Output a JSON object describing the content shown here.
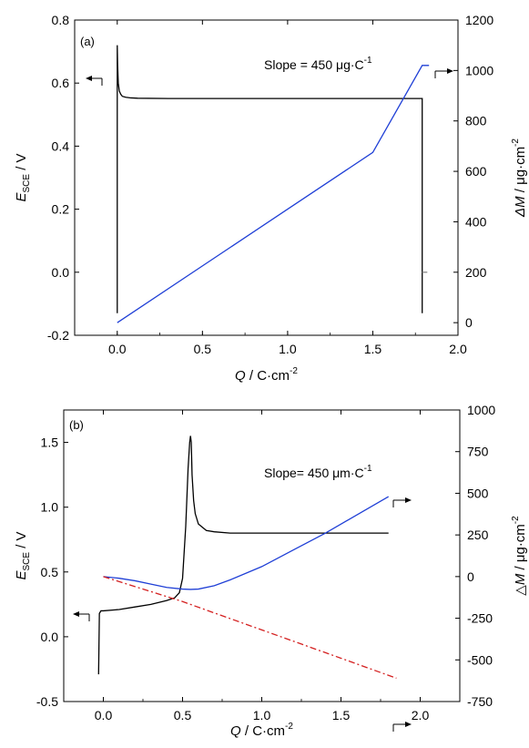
{
  "chart_data": [
    {
      "panel_label": "(a)",
      "type": "line",
      "xlabel": {
        "var": "Q",
        "unit": " / C·cm",
        "exp": "-2"
      },
      "ylabel_left": {
        "var": "E",
        "sub": "SCE",
        "unit": " / V"
      },
      "ylabel_right": {
        "var": "ΔM",
        "unit": " / μg·cm",
        "exp": "-2"
      },
      "xlim": [
        -0.25,
        2.0
      ],
      "ylim_left": [
        -0.2,
        0.8
      ],
      "ylim_right": [
        -50,
        1200
      ],
      "x_ticks": [
        "0.0",
        "0.5",
        "1.0",
        "1.5",
        "2.0"
      ],
      "y_left_ticks": [
        "-0.2",
        "0.0",
        "0.2",
        "0.4",
        "0.6",
        "0.8"
      ],
      "y_right_ticks": [
        "0",
        "200",
        "400",
        "600",
        "800",
        "1000",
        "1200"
      ],
      "annotation": {
        "text": "Slope = 450 μg·C",
        "exp": "-1"
      },
      "colors": {
        "potential": "#000000",
        "mass": "#1f3fd6",
        "stub": "#888888"
      },
      "series": [
        {
          "axis": "left",
          "color": "#000000",
          "x": [
            0.0,
            0.0,
            0.002,
            0.006,
            0.012,
            0.02,
            0.03,
            0.05,
            0.08,
            0.12,
            0.3,
            0.6,
            1.0,
            1.4,
            1.79,
            1.79
          ],
          "y": [
            -0.13,
            0.72,
            0.66,
            0.6,
            0.575,
            0.565,
            0.558,
            0.555,
            0.553,
            0.552,
            0.551,
            0.551,
            0.551,
            0.551,
            0.551,
            -0.13
          ]
        },
        {
          "axis": "right",
          "color": "#1f3fd6",
          "x": [
            0.0,
            0.5,
            1.0,
            1.5,
            1.79,
            1.83
          ],
          "y": [
            0,
            225,
            450,
            675,
            1020,
            1020
          ]
        },
        {
          "axis": "left",
          "color": "#888888",
          "x": [
            1.79,
            1.82
          ],
          "y": [
            0.0,
            0.0
          ]
        }
      ]
    },
    {
      "panel_label": "(b)",
      "type": "line",
      "xlabel": {
        "var": "Q",
        "unit": " / C·cm",
        "exp": "-2"
      },
      "ylabel_left": {
        "var": "E",
        "sub": "SCE",
        "unit": " / V"
      },
      "ylabel_right": {
        "var": "△M",
        "unit": " / μg·cm",
        "exp": "-2"
      },
      "xlim": [
        -0.25,
        2.25
      ],
      "ylim_left": [
        -0.5,
        1.75
      ],
      "ylim_right": [
        -750,
        1000
      ],
      "x_ticks": [
        "0.0",
        "0.5",
        "1.0",
        "1.5",
        "2.0"
      ],
      "y_left_ticks": [
        "-0.5",
        "0.0",
        "0.5",
        "1.0",
        "1.5"
      ],
      "y_right_ticks": [
        "-750",
        "-500",
        "-250",
        "0",
        "250",
        "500",
        "750",
        "1000"
      ],
      "annotation": {
        "text": "Slope= 450 μm·C",
        "exp": "-1"
      },
      "colors": {
        "potential": "#000000",
        "mass": "#1f3fd6",
        "dashed": "#d42020"
      },
      "series": [
        {
          "axis": "left",
          "color": "#000000",
          "x": [
            -0.03,
            -0.025,
            -0.02,
            -0.015,
            0.0,
            0.1,
            0.2,
            0.3,
            0.4,
            0.45,
            0.48,
            0.5,
            0.52,
            0.535,
            0.545,
            0.55,
            0.555,
            0.56,
            0.57,
            0.58,
            0.6,
            0.65,
            0.7,
            0.8,
            1.0,
            1.3,
            1.6,
            1.8
          ],
          "y": [
            -0.29,
            0.18,
            0.19,
            0.2,
            0.2,
            0.21,
            0.23,
            0.25,
            0.28,
            0.3,
            0.34,
            0.45,
            0.85,
            1.3,
            1.5,
            1.55,
            1.5,
            1.25,
            1.05,
            0.95,
            0.87,
            0.82,
            0.81,
            0.8,
            0.8,
            0.8,
            0.8,
            0.8
          ]
        },
        {
          "axis": "right",
          "color": "#1f3fd6",
          "x": [
            0.0,
            0.1,
            0.2,
            0.3,
            0.4,
            0.5,
            0.55,
            0.6,
            0.7,
            0.8,
            1.0,
            1.2,
            1.4,
            1.6,
            1.8
          ],
          "y": [
            0,
            -10,
            -25,
            -45,
            -65,
            -75,
            -77,
            -75,
            -55,
            -20,
            60,
            160,
            260,
            370,
            480
          ]
        },
        {
          "axis": "right",
          "color": "#d42020",
          "style": "dashdot",
          "x": [
            0.0,
            0.5,
            1.0,
            1.5,
            1.85
          ],
          "y": [
            0,
            -150,
            -320,
            -490,
            -610
          ]
        }
      ]
    }
  ]
}
